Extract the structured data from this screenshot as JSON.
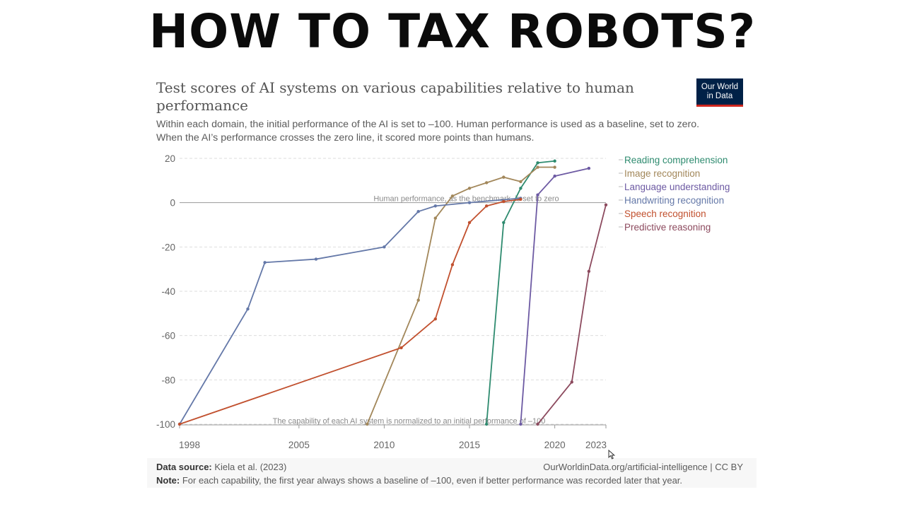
{
  "banner": {
    "text": "HOW TO TAX ROBOTS?"
  },
  "card": {
    "title": "Test scores of AI systems on various capabilities relative to human performance",
    "subtitle_line1": "Within each domain, the initial performance of the AI is set to –100. Human performance is used as a baseline, set to zero.",
    "subtitle_line2": "When the AI’s performance crosses the zero line, it scored more points than humans.",
    "logo_line1": "Our World",
    "logo_line2": "in Data",
    "source_label": "Data source:",
    "source_text": "Kiela et al. (2023)",
    "url_text": "OurWorldinData.org/artificial-intelligence | CC BY",
    "note_label": "Note:",
    "note_text": "For each capability, the first year always shows a baseline of –100, even if better performance was recorded later that year."
  },
  "colors": {
    "banner": "#0b0b0b",
    "logo_bg": "#002147",
    "logo_accent": "#ce261e",
    "text": "#5b5b5b",
    "grid": "#dddddd",
    "zero_line": "#9a9a9a"
  },
  "chart_data": {
    "type": "line",
    "title": "Test scores of AI systems on various capabilities relative to human performance",
    "xlim": [
      1998,
      2023
    ],
    "ylim": [
      -100,
      20
    ],
    "x_ticks": [
      1998,
      2005,
      2010,
      2015,
      2020,
      2023
    ],
    "y_ticks": [
      20,
      0,
      -20,
      -40,
      -60,
      -80,
      -100
    ],
    "grid": true,
    "legend_position": "right",
    "annotations": [
      {
        "text": "Human performance, as the benchmark, is set to zero",
        "x": 2009,
        "y": 0
      },
      {
        "text": "The capability of each AI system is normalized to an initial performance of –100",
        "x": 2003,
        "y": -100
      }
    ],
    "series": [
      {
        "name": "Reading comprehension",
        "color": "#2e8b6f",
        "x": [
          2016,
          2017,
          2018,
          2019,
          2020
        ],
        "y": [
          -100,
          -9,
          6.5,
          18,
          18.8
        ]
      },
      {
        "name": "Image recognition",
        "color": "#a2875a",
        "x": [
          2009,
          2012,
          2013,
          2014,
          2015,
          2016,
          2017,
          2018,
          2019,
          2020
        ],
        "y": [
          -100,
          -44,
          -7,
          3,
          6.5,
          9,
          11.5,
          9.5,
          16,
          16
        ]
      },
      {
        "name": "Language understanding",
        "color": "#6d5aa3",
        "x": [
          2018,
          2019,
          2020,
          2022
        ],
        "y": [
          -100,
          3.5,
          12,
          15.5
        ]
      },
      {
        "name": "Handwriting recognition",
        "color": "#6478a8",
        "x": [
          1998,
          2002,
          2003,
          2006,
          2010,
          2012,
          2013,
          2015,
          2018
        ],
        "y": [
          -100,
          -48,
          -27,
          -25.5,
          -20,
          -4,
          -1.5,
          0,
          2
        ]
      },
      {
        "name": "Speech recognition",
        "color": "#c1502e",
        "x": [
          1998,
          2011,
          2013,
          2014,
          2015,
          2016,
          2017,
          2018
        ],
        "y": [
          -100,
          -65.5,
          -52.5,
          -28,
          -9,
          -1.5,
          0.5,
          1.5
        ]
      },
      {
        "name": "Predictive reasoning",
        "color": "#8c4a5e",
        "x": [
          2019,
          2021,
          2022,
          2023
        ],
        "y": [
          -100,
          -81,
          -31,
          -1
        ]
      }
    ]
  }
}
